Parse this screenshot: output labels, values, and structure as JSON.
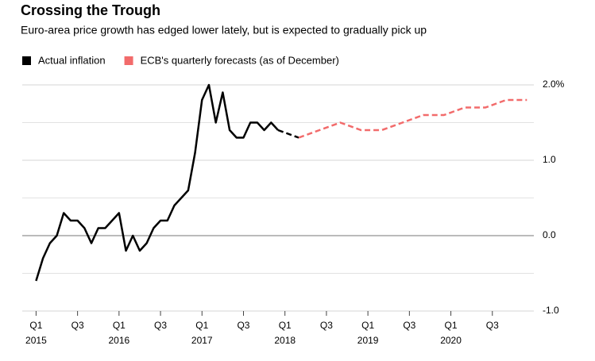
{
  "chart_data": {
    "type": "line",
    "title": "Crossing the Trough",
    "subtitle": "Euro-area price growth has edged lower lately, but is expected to gradually pick up",
    "xlim": [
      "2014-11",
      "2021-01"
    ],
    "xticks": [
      {
        "value": "2015-01",
        "label": "Q1",
        "year": "2015"
      },
      {
        "value": "2015-07",
        "label": "Q3"
      },
      {
        "value": "2016-01",
        "label": "Q1",
        "year": "2016"
      },
      {
        "value": "2016-07",
        "label": "Q3"
      },
      {
        "value": "2017-01",
        "label": "Q1",
        "year": "2017"
      },
      {
        "value": "2017-07",
        "label": "Q3"
      },
      {
        "value": "2018-01",
        "label": "Q1",
        "year": "2018"
      },
      {
        "value": "2018-07",
        "label": "Q3"
      },
      {
        "value": "2019-01",
        "label": "Q1",
        "year": "2019"
      },
      {
        "value": "2019-07",
        "label": "Q3"
      },
      {
        "value": "2020-01",
        "label": "Q1",
        "year": "2020"
      },
      {
        "value": "2020-07",
        "label": "Q3"
      }
    ],
    "ylim": [
      -1,
      2
    ],
    "yticks": [
      {
        "value": 2,
        "label": "2.0%"
      },
      {
        "value": 1,
        "label": "1.0"
      },
      {
        "value": 0,
        "label": "0.0"
      },
      {
        "value": -1,
        "label": "-1.0"
      }
    ],
    "minor_yticks": [
      1.5,
      0.5,
      -0.5
    ],
    "grid": true,
    "legend": "top-left",
    "series": [
      {
        "name": "Actual inflation",
        "color": "#000000",
        "line_style": "solid",
        "dashed_after": 35,
        "x": [
          "2015-01",
          "2015-02",
          "2015-03",
          "2015-04",
          "2015-05",
          "2015-06",
          "2015-07",
          "2015-08",
          "2015-09",
          "2015-10",
          "2015-11",
          "2015-12",
          "2016-01",
          "2016-02",
          "2016-03",
          "2016-04",
          "2016-05",
          "2016-06",
          "2016-07",
          "2016-08",
          "2016-09",
          "2016-10",
          "2016-11",
          "2016-12",
          "2017-01",
          "2017-02",
          "2017-03",
          "2017-04",
          "2017-05",
          "2017-06",
          "2017-07",
          "2017-08",
          "2017-09",
          "2017-10",
          "2017-11",
          "2017-12",
          "2018-03"
        ],
        "values": [
          -0.6,
          -0.3,
          -0.1,
          0.0,
          0.3,
          0.2,
          0.2,
          0.1,
          -0.1,
          0.1,
          0.1,
          0.2,
          0.3,
          -0.2,
          0.0,
          -0.2,
          -0.1,
          0.1,
          0.2,
          0.2,
          0.4,
          0.5,
          0.6,
          1.1,
          1.8,
          2.0,
          1.5,
          1.9,
          1.4,
          1.3,
          1.3,
          1.5,
          1.5,
          1.4,
          1.5,
          1.4,
          1.3
        ]
      },
      {
        "name": "ECB's quarterly forecasts (as of December)",
        "color": "#f26b6b",
        "line_style": "dashed",
        "x": [
          "2018-03",
          "2018-06",
          "2018-09",
          "2018-12",
          "2019-03",
          "2019-06",
          "2019-09",
          "2019-12",
          "2020-03",
          "2020-06",
          "2020-09",
          "2020-12"
        ],
        "values": [
          1.3,
          1.4,
          1.5,
          1.4,
          1.4,
          1.5,
          1.6,
          1.6,
          1.7,
          1.7,
          1.8,
          1.8
        ]
      }
    ]
  }
}
